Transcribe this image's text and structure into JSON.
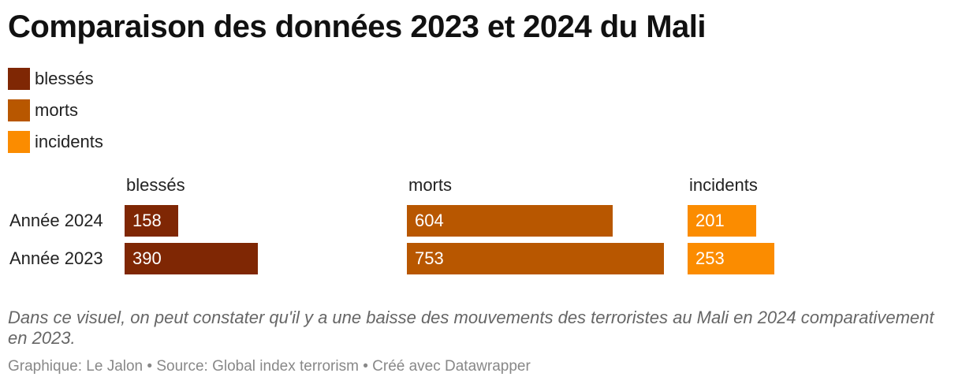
{
  "title": "Comparaison des données 2023 et 2024 du Mali",
  "legend": [
    {
      "label": "blessés",
      "color": "#7f2704"
    },
    {
      "label": "morts",
      "color": "#b85700"
    },
    {
      "label": "incidents",
      "color": "#fb8c00"
    }
  ],
  "chart_data": {
    "type": "bar",
    "orientation": "horizontal",
    "title": "Comparaison des données 2023 et 2024 du Mali",
    "categories": [
      "Année 2024",
      "Année 2023"
    ],
    "series": [
      {
        "name": "blessés",
        "values": [
          158,
          390
        ],
        "color": "#7f2704"
      },
      {
        "name": "morts",
        "values": [
          604,
          753
        ],
        "color": "#b85700"
      },
      {
        "name": "incidents",
        "values": [
          201,
          253
        ],
        "color": "#fb8c00"
      }
    ],
    "xlabel": "",
    "ylabel": "",
    "grid": false,
    "legend_position": "top-left"
  },
  "caption": "Dans ce visuel, on peut constater qu'il y a une baisse des mouvements des terroristes au Mali en 2024 comparativement en 2023.",
  "footer": "Graphique: Le Jalon • Source: Global index terrorism • Créé avec Datawrapper"
}
